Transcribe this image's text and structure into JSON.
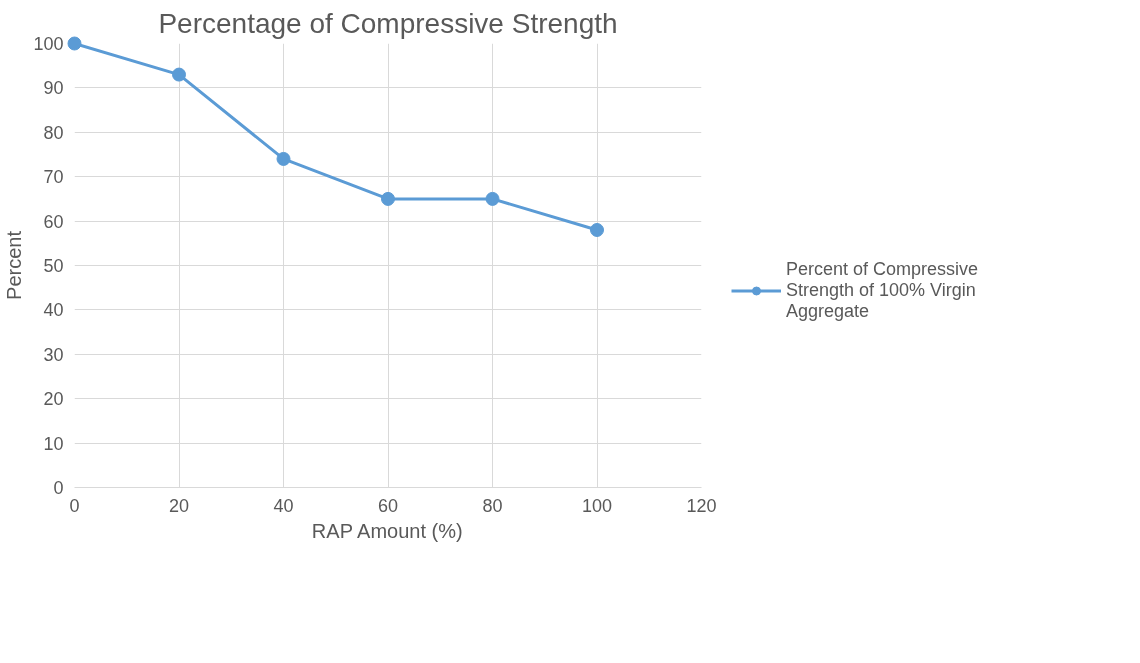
{
  "chart_data": {
    "type": "line",
    "title": "Percentage of Compressive Strength",
    "xlabel": "RAP Amount (%)",
    "ylabel": "Percent",
    "x": [
      0,
      20,
      40,
      60,
      80,
      100
    ],
    "series": [
      {
        "name": "Percent of Compressive Strength of 100% Virgin Aggregate",
        "color": "#5b9bd5",
        "values": [
          100,
          93,
          74,
          65,
          65,
          58
        ]
      }
    ],
    "xlim": [
      0,
      120
    ],
    "xticks": [
      0,
      20,
      40,
      60,
      80,
      100,
      120
    ],
    "ylim": [
      0,
      100
    ],
    "yticks": [
      0,
      10,
      20,
      30,
      40,
      50,
      60,
      70,
      80,
      90,
      100
    ],
    "grid": true,
    "legend": "right",
    "marker": "circle",
    "line_style": "solid"
  }
}
